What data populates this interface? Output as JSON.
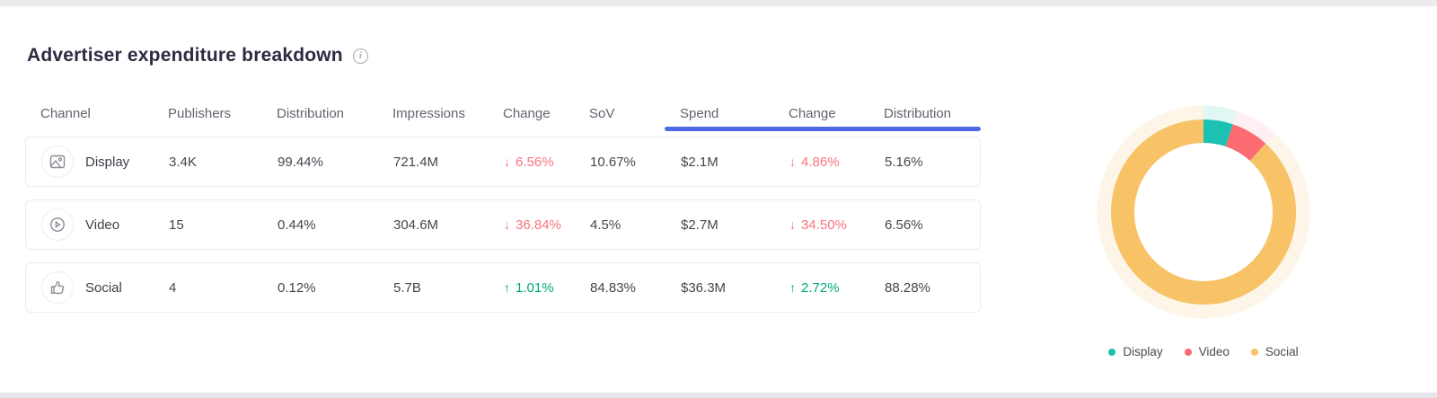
{
  "page": {
    "title": "Advertiser expenditure breakdown"
  },
  "table": {
    "columns": {
      "channel": "Channel",
      "publishers": "Publishers",
      "distribution": "Distribution",
      "impressions": "Impressions",
      "change": "Change",
      "sov": "SoV",
      "spend": "Spend",
      "spend_change": "Change",
      "spend_distribution": "Distribution"
    },
    "rows": [
      {
        "channel": "Display",
        "icon": "display-image-icon",
        "publishers": "3.4K",
        "distribution": "99.44%",
        "impressions": "721.4M",
        "change_arrow": "↓",
        "change": "6.56%",
        "change_dir": "down",
        "sov": "10.67%",
        "spend": "$2.1M",
        "spend_change_arrow": "↓",
        "spend_change": "4.86%",
        "spend_change_dir": "down",
        "spend_distribution": "5.16%"
      },
      {
        "channel": "Video",
        "icon": "video-play-icon",
        "publishers": "15",
        "distribution": "0.44%",
        "impressions": "304.6M",
        "change_arrow": "↓",
        "change": "36.84%",
        "change_dir": "down",
        "sov": "4.5%",
        "spend": "$2.7M",
        "spend_change_arrow": "↓",
        "spend_change": "34.50%",
        "spend_change_dir": "down",
        "spend_distribution": "6.56%"
      },
      {
        "channel": "Social",
        "icon": "thumb-up-icon",
        "publishers": "4",
        "distribution": "0.12%",
        "impressions": "5.7B",
        "change_arrow": "↑",
        "change": "1.01%",
        "change_dir": "up",
        "sov": "84.83%",
        "spend": "$36.3M",
        "spend_change_arrow": "↑",
        "spend_change": "2.72%",
        "spend_change_dir": "up",
        "spend_distribution": "88.28%"
      }
    ]
  },
  "chart_data": {
    "type": "pie",
    "donut": true,
    "inner_radius_ratio": 0.75,
    "start_angle_deg": 0,
    "legend_position": "bottom",
    "segments": [
      {
        "label": "Display",
        "value": 5.16,
        "color": "#1bc2b1",
        "halo_color": "#e0f7f4"
      },
      {
        "label": "Video",
        "value": 6.56,
        "color": "#fa6b72",
        "halo_color": "#fdeff2"
      },
      {
        "label": "Social",
        "value": 88.28,
        "color": "#f8c266",
        "halo_color": "#fdf5e8"
      }
    ]
  },
  "colors": {
    "accent_blue": "#4d69e8",
    "negative": "#f8737e",
    "positive": "#00a87d",
    "title_text": "#2b2c41",
    "header_text": "#63636e"
  }
}
